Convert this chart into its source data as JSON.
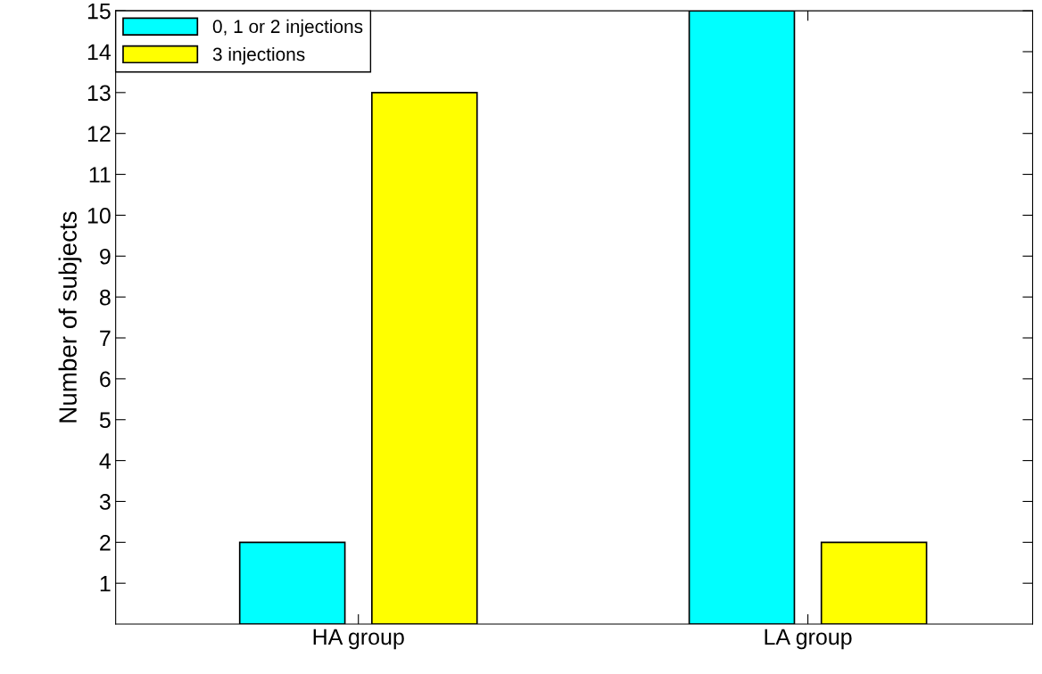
{
  "chart_data": {
    "type": "bar",
    "ylabel": "Number of subjects",
    "categories": [
      "HA group",
      "LA group"
    ],
    "series": [
      {
        "name": "0, 1 or 2 injections",
        "color": "#00ffff",
        "values": [
          2,
          15
        ]
      },
      {
        "name": "3 injections",
        "color": "#ffff00",
        "values": [
          13,
          2
        ]
      }
    ],
    "ylim": [
      0,
      15
    ],
    "yticks": [
      1,
      2,
      3,
      4,
      5,
      6,
      7,
      8,
      9,
      10,
      11,
      12,
      13,
      14,
      15
    ],
    "grid": false,
    "legend": "top left"
  }
}
